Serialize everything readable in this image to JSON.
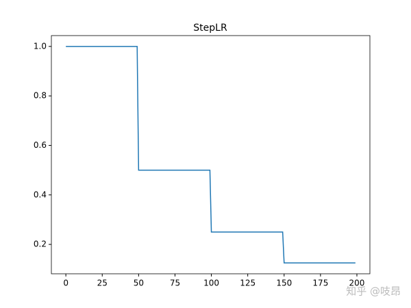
{
  "chart_data": {
    "type": "line",
    "title": "StepLR",
    "x": [
      0,
      49,
      50,
      99,
      100,
      149,
      150,
      199
    ],
    "series": [
      {
        "color": "#1f77b4",
        "values": [
          1.0,
          1.0,
          0.5,
          0.5,
          0.25,
          0.25,
          0.125,
          0.125
        ]
      }
    ],
    "xlim": [
      -9.95,
      208.95
    ],
    "xticks": [
      0,
      25,
      50,
      75,
      100,
      125,
      150,
      175,
      200
    ],
    "ylim": [
      0.08125,
      1.04375
    ],
    "yticks": [
      0.2,
      0.4,
      0.6,
      0.8,
      {
        "value": 1,
        "label": "1.0"
      }
    ],
    "grid": false
  },
  "watermark": "知乎 @吱昂"
}
